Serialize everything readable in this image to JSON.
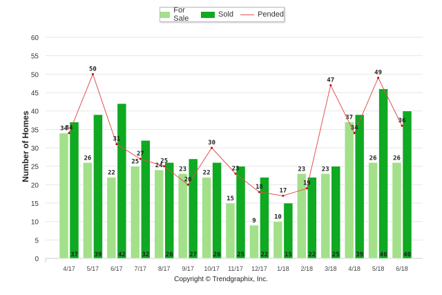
{
  "chart_data": {
    "type": "bar",
    "title": "",
    "xlabel": "",
    "ylabel": "Number of Homes",
    "ylim": [
      0,
      60
    ],
    "yticks": [
      0,
      5,
      10,
      15,
      20,
      25,
      30,
      35,
      40,
      45,
      50,
      55,
      60
    ],
    "grid": true,
    "legend_position": "top",
    "categories": [
      "4/17",
      "5/17",
      "6/17",
      "7/17",
      "8/17",
      "9/17",
      "10/17",
      "11/17",
      "12/17",
      "1/18",
      "2/18",
      "3/18",
      "4/18",
      "5/18",
      "6/18"
    ],
    "series": [
      {
        "name": "For Sale",
        "type": "bar",
        "color": "#a3e08a",
        "values": [
          34,
          26,
          22,
          25,
          24,
          23,
          22,
          15,
          9,
          10,
          23,
          23,
          37,
          26,
          26
        ]
      },
      {
        "name": "Sold",
        "type": "bar",
        "color": "#0fa922",
        "values": [
          37,
          39,
          42,
          32,
          26,
          27,
          26,
          25,
          22,
          15,
          22,
          25,
          39,
          46,
          40
        ]
      },
      {
        "name": "Pended",
        "type": "line",
        "color": "#e05050",
        "values": [
          34,
          50,
          31,
          27,
          25,
          20,
          30,
          23,
          18,
          17,
          19,
          47,
          34,
          49,
          36
        ]
      }
    ]
  },
  "footer": {
    "copyright": "Copyright © Trendgraphix, Inc."
  }
}
